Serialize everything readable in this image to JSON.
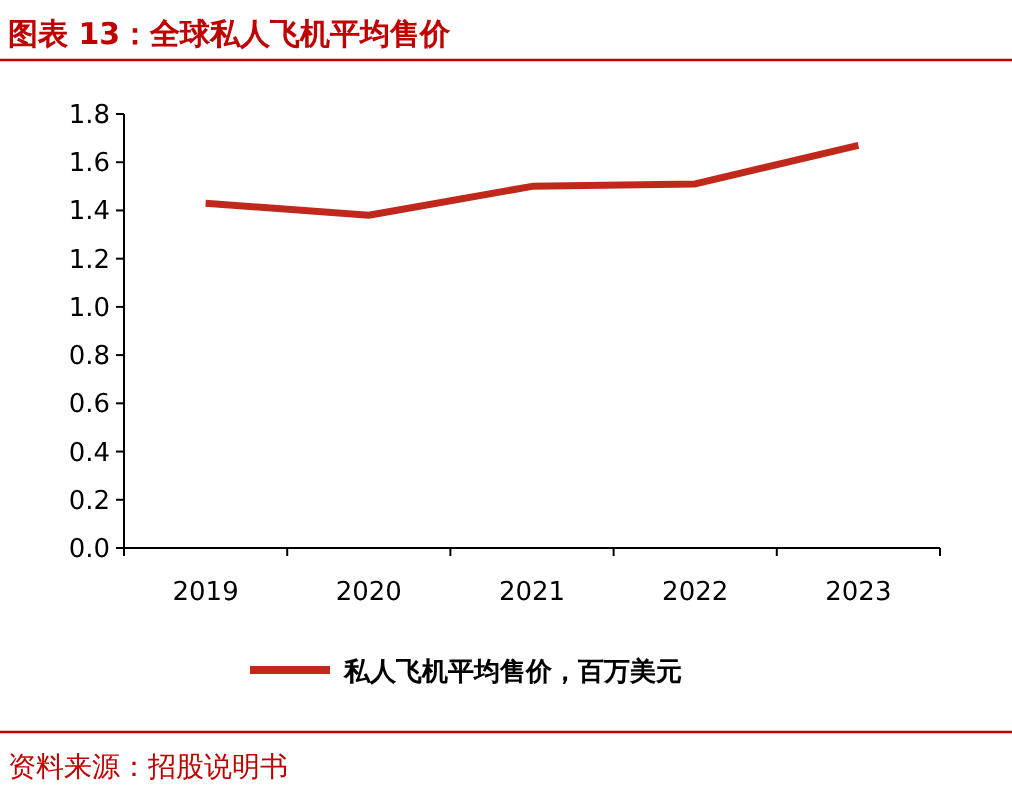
{
  "chart_data": {
    "type": "line",
    "title": "图表 13：全球私人飞机平均售价",
    "categories": [
      "2019",
      "2020",
      "2021",
      "2022",
      "2023"
    ],
    "series": [
      {
        "name": "私人飞机平均售价，百万美元",
        "color": "#c0281c",
        "values": [
          1.43,
          1.38,
          1.5,
          1.51,
          1.67
        ]
      }
    ],
    "ylim": [
      0,
      1.8
    ],
    "yticks": [
      {
        "value": 0,
        "label": "0.0"
      },
      {
        "value": 0.2,
        "label": "0.2"
      },
      {
        "value": 0.4,
        "label": "0.4"
      },
      {
        "value": 0.6,
        "label": "0.6"
      },
      {
        "value": 0.8,
        "label": "0.8"
      },
      {
        "value": 1,
        "label": "1.0"
      },
      {
        "value": 1.2,
        "label": "1.2"
      },
      {
        "value": 1.4,
        "label": "1.4"
      },
      {
        "value": 1.6,
        "label": "1.6"
      },
      {
        "value": 1.8,
        "label": "1.8"
      }
    ],
    "legend": "bottom",
    "marker": "none",
    "line_style": "solid",
    "grid": false,
    "annotations": [
      "资料来源：招股说明书"
    ]
  }
}
